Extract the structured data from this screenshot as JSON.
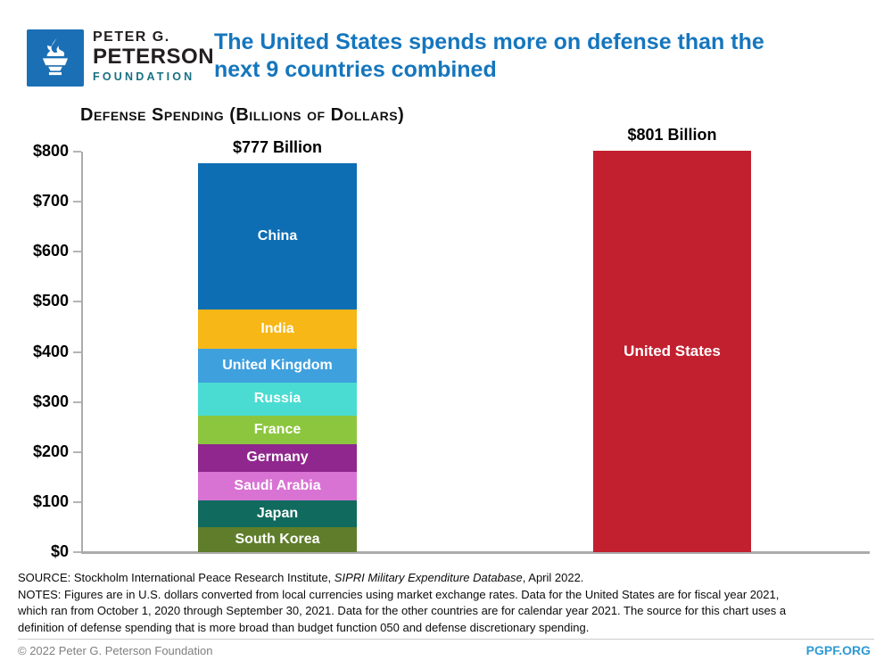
{
  "header": {
    "logo": {
      "line1": "PETER G.",
      "line2": "PETERSON",
      "line3": "FOUNDATION",
      "square_color": "#1B6FB5",
      "foundation_color": "#177082"
    },
    "title_line1": "The United States spends more on defense than the",
    "title_line2": "next 9 countries combined",
    "title_color": "#1576BD"
  },
  "chart_data": {
    "type": "bar",
    "variant": "stacked-comparison",
    "title": "Defense Spending (Billions of Dollars)",
    "xlabel": "",
    "ylabel": "",
    "ylim": [
      0,
      800
    ],
    "grid": false,
    "legend": "labels-inside-segments",
    "ytick_prefix": "$",
    "yticks": [
      {
        "value": 0,
        "label": "$0"
      },
      {
        "value": 100,
        "label": "$100"
      },
      {
        "value": 200,
        "label": "$200"
      },
      {
        "value": 300,
        "label": "$300"
      },
      {
        "value": 400,
        "label": "$400"
      },
      {
        "value": 500,
        "label": "$500"
      },
      {
        "value": 600,
        "label": "$600"
      },
      {
        "value": 700,
        "label": "$700"
      },
      {
        "value": 800,
        "label": "$800"
      }
    ],
    "bars": [
      {
        "name": "next-9-countries",
        "total": 777,
        "total_label": "$777 Billion",
        "segments_order": "top-to-bottom",
        "segments": [
          {
            "label": "China",
            "value": 293,
            "color": "#0D6EB4"
          },
          {
            "label": "India",
            "value": 77,
            "color": "#F7B717"
          },
          {
            "label": "United Kingdom",
            "value": 68,
            "color": "#3FA0DE"
          },
          {
            "label": "Russia",
            "value": 66,
            "color": "#4ADCD2"
          },
          {
            "label": "France",
            "value": 57,
            "color": "#8CC63E"
          },
          {
            "label": "Germany",
            "value": 56,
            "color": "#90278E"
          },
          {
            "label": "Saudi Arabia",
            "value": 56,
            "color": "#D873D4"
          },
          {
            "label": "Japan",
            "value": 54,
            "color": "#116A5E"
          },
          {
            "label": "South Korea",
            "value": 50,
            "color": "#5F7D2B"
          }
        ]
      },
      {
        "name": "united-states",
        "total": 801,
        "total_label": "$801 Billion",
        "segments_order": "top-to-bottom",
        "segments": [
          {
            "label": "United States",
            "value": 801,
            "color": "#C2202F"
          }
        ]
      }
    ]
  },
  "notes": {
    "source_prefix": "SOURCE: Stockholm International Peace Research Institute, ",
    "source_italic": "SIPRI Military Expenditure Database",
    "source_suffix": ", April 2022.",
    "notes_line1": "NOTES: Figures are in U.S. dollars converted from local currencies using market exchange rates. Data for the United States are for fiscal year 2021,",
    "notes_line2": "which ran from October 1, 2020 through September 30, 2021. Data for the other countries are for calendar year 2021. The source for this chart uses a",
    "notes_line3": "definition of defense spending that is more broad than budget function 050 and defense discretionary spending."
  },
  "footer": {
    "copyright": "© 2022 Peter G. Peterson Foundation",
    "site": "PGPF.ORG"
  }
}
